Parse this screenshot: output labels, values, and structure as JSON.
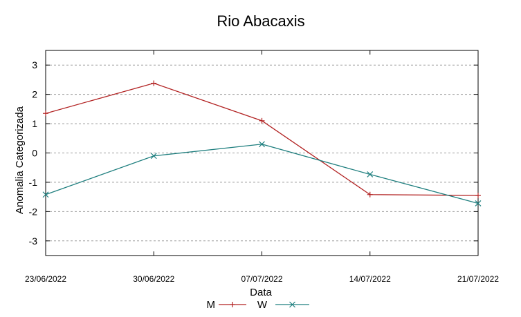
{
  "chart_data": {
    "type": "line",
    "title": "Rio Abacaxis",
    "xlabel": "Data",
    "ylabel": "Anomalia Categorizada",
    "categories": [
      "23/06/2022",
      "30/06/2022",
      "07/07/2022",
      "14/07/2022",
      "21/07/2022"
    ],
    "yticks": [
      "3",
      "2",
      "1",
      "0",
      "-1",
      "-2",
      "-3"
    ],
    "ylim": [
      -3.5,
      3.5
    ],
    "grid": "horizontal dashed",
    "legend_position": "bottom",
    "series": [
      {
        "name": "M",
        "color": "#b22222",
        "marker": "plus",
        "values": [
          1.35,
          2.38,
          1.1,
          -1.42,
          -1.45
        ]
      },
      {
        "name": "W",
        "color": "#1f7f7f",
        "marker": "cross",
        "values": [
          -1.42,
          -0.1,
          0.3,
          -0.73,
          -1.72
        ]
      }
    ]
  }
}
